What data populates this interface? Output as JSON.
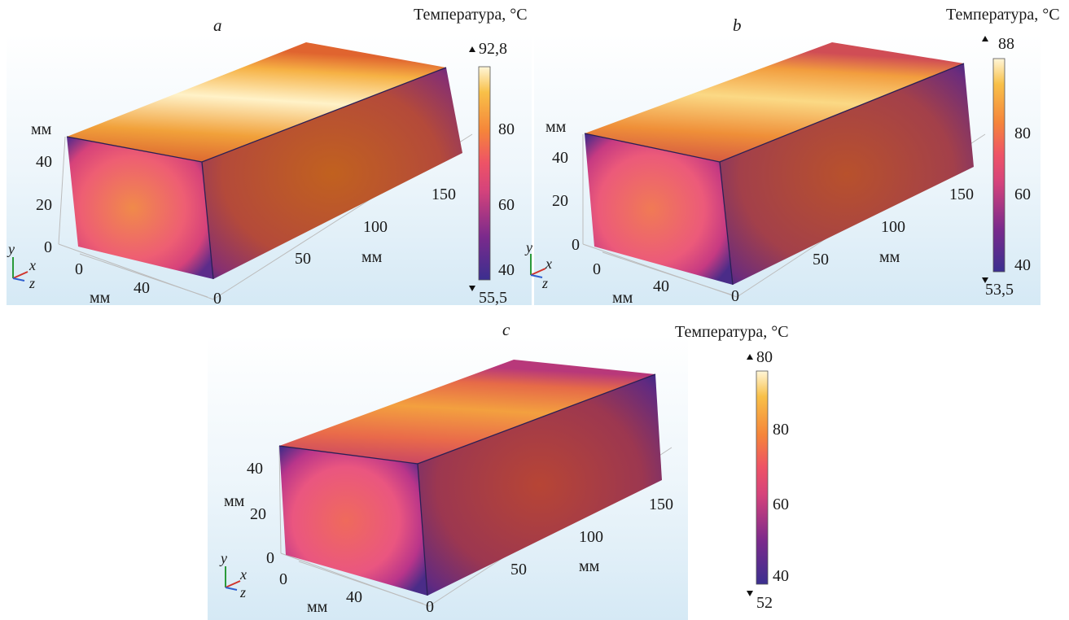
{
  "colorbar_title": "Температура, °C",
  "axis_unit": "мм",
  "axis_triad": {
    "y": "y",
    "x": "x",
    "z": "z"
  },
  "panels": [
    {
      "label": "a",
      "colorbar": {
        "max_marker": "92,8",
        "min_marker": "55,5",
        "ticks": [
          "80",
          "60",
          "40"
        ]
      },
      "y_ticks": [
        "40",
        "20",
        "0"
      ],
      "width_ticks": [
        "0",
        "40"
      ],
      "length_ticks": [
        "0",
        "50",
        "100",
        "150"
      ]
    },
    {
      "label": "b",
      "colorbar": {
        "max_marker": "88",
        "min_marker": "53,5",
        "ticks": [
          "80",
          "60",
          "40"
        ]
      },
      "y_ticks": [
        "40",
        "20",
        "0"
      ],
      "width_ticks": [
        "0",
        "40"
      ],
      "length_ticks": [
        "0",
        "50",
        "100",
        "150"
      ]
    },
    {
      "label": "c",
      "colorbar": {
        "max_marker": "80",
        "min_marker": "52",
        "ticks": [
          "80",
          "60",
          "40"
        ]
      },
      "y_ticks": [
        "40",
        "20",
        "0"
      ],
      "width_ticks": [
        "0",
        "40"
      ],
      "length_ticks": [
        "0",
        "50",
        "100",
        "150"
      ]
    }
  ],
  "colormap": [
    "#3b2f8f",
    "#7a2a8c",
    "#c43c7a",
    "#ea4f63",
    "#f47a3a",
    "#f8b33a",
    "#fff6d8"
  ]
}
